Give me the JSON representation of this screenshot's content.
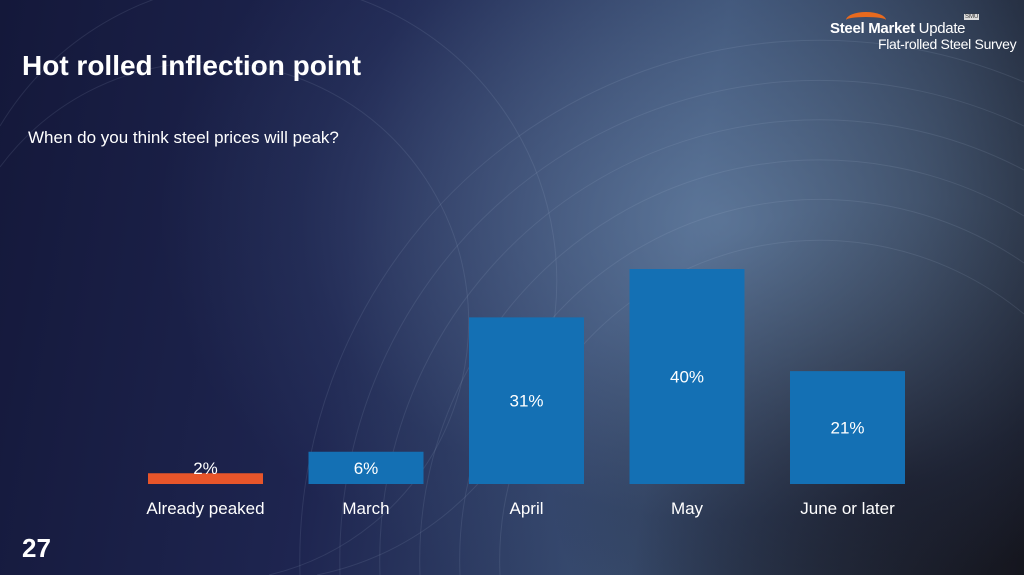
{
  "header": {
    "title": "Hot rolled inflection point",
    "question": "When do you think steel prices will peak?",
    "page_number": "27"
  },
  "logo": {
    "brand_bold": "Steel Market",
    "brand_light": "Update",
    "subtitle": "Flat-rolled Steel Survey",
    "badge": "SMU"
  },
  "chart_data": {
    "type": "bar",
    "title": "When do you think steel prices will peak?",
    "categories": [
      "Already peaked",
      "March",
      "April",
      "May",
      "June or later"
    ],
    "values": [
      2,
      6,
      31,
      40,
      21
    ],
    "data_labels": [
      "2%",
      "6%",
      "31%",
      "40%",
      "21%"
    ],
    "colors": [
      "#e8552a",
      "#1470b4",
      "#1470b4",
      "#1470b4",
      "#1470b4"
    ],
    "ylim": [
      0,
      40
    ],
    "grid": false
  }
}
